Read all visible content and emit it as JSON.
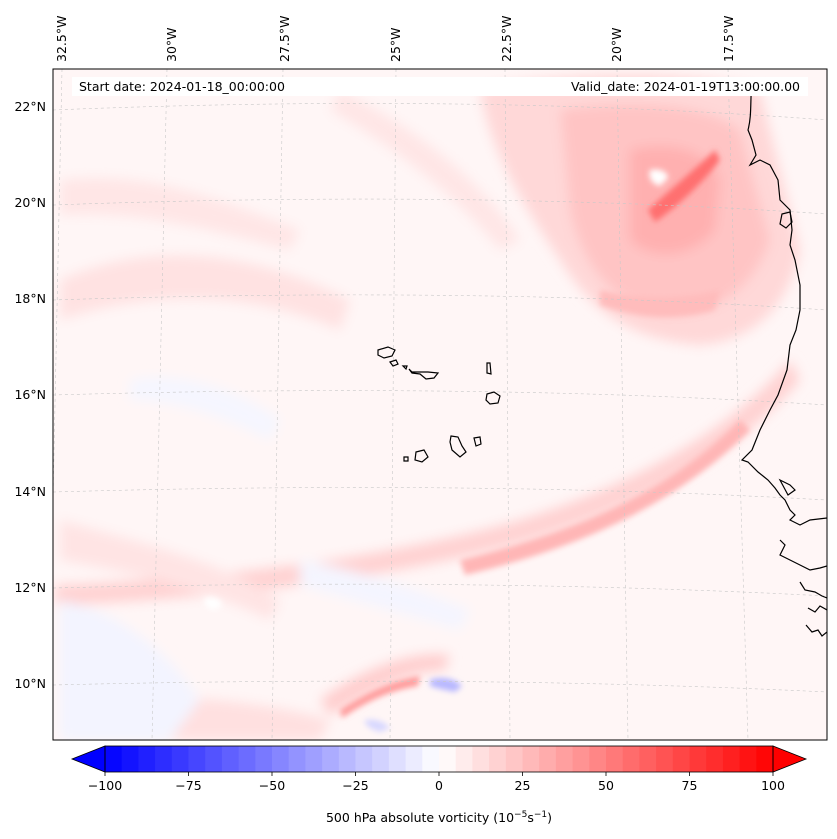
{
  "header": {
    "start_date": "Start date: 2024-01-18_00:00:00",
    "valid_date": "Valid_date: 2024-01-19T13:00:00.00"
  },
  "map": {
    "lon_labels": [
      "32.5°W",
      "30°W",
      "27.5°W",
      "25°W",
      "22.5°W",
      "20°W",
      "17.5°W"
    ],
    "lat_labels": [
      "22°N",
      "20°N",
      "18°N",
      "16°N",
      "14°N",
      "12°N",
      "10°N"
    ],
    "gridlines": true,
    "features": [
      "Cape Verde islands",
      "West African coastline"
    ]
  },
  "colorbar": {
    "label_prefix": "500 hPa absolute vorticity (10",
    "label_exp1": "−5",
    "label_mid": "s",
    "label_exp2": "−1",
    "label_suffix": ")",
    "ticks": [
      "−100",
      "−75",
      "−50",
      "−25",
      "0",
      "25",
      "50",
      "75",
      "100"
    ],
    "range": [
      -100,
      100
    ],
    "colormap": "bwr",
    "extend": "both"
  },
  "colors": {
    "negative": "#0000ff",
    "zero": "#ffffff",
    "positive": "#ff0000"
  }
}
